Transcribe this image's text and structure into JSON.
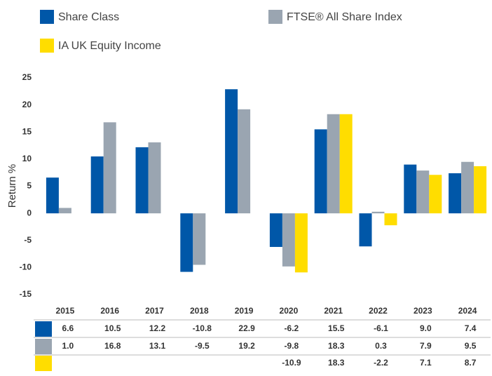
{
  "chart_data": {
    "type": "bar",
    "y_label": "Return %",
    "categories": [
      "2015",
      "2016",
      "2017",
      "2018",
      "2019",
      "2020",
      "2021",
      "2022",
      "2023",
      "2024"
    ],
    "series": [
      {
        "name": "Share Class",
        "color": "#0057a8",
        "values": [
          6.6,
          10.5,
          12.2,
          -10.8,
          22.9,
          -6.2,
          15.5,
          -6.1,
          9.0,
          7.4
        ],
        "value_labels": [
          "6.6",
          "10.5",
          "12.2",
          "-10.8",
          "22.9",
          "-6.2",
          "15.5",
          "-6.1",
          "9.0",
          "7.4"
        ]
      },
      {
        "name": "FTSE® All Share Index",
        "color": "#9aa5b1",
        "values": [
          1.0,
          16.8,
          13.1,
          -9.5,
          19.2,
          -9.8,
          18.3,
          0.3,
          7.9,
          9.5
        ],
        "value_labels": [
          "1.0",
          "16.8",
          "13.1",
          "-9.5",
          "19.2",
          "-9.8",
          "18.3",
          "0.3",
          "7.9",
          "9.5"
        ]
      },
      {
        "name": "IA UK Equity Income",
        "color": "#ffdd00",
        "values": [
          null,
          null,
          null,
          null,
          null,
          -10.9,
          18.3,
          -2.2,
          7.1,
          8.7
        ],
        "value_labels": [
          null,
          null,
          null,
          null,
          null,
          "-10.9",
          "18.3",
          "-2.2",
          "7.1",
          "8.7"
        ]
      }
    ],
    "ylim": [
      -15,
      25
    ],
    "yticks": [
      -15,
      -10,
      -5,
      0,
      5,
      10,
      15,
      20,
      25
    ],
    "grid": false
  }
}
